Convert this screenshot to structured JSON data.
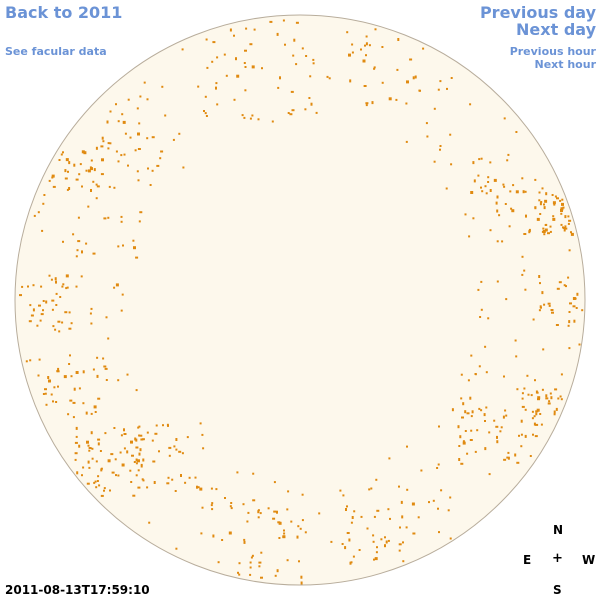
{
  "nav": {
    "back": "Back to 2011",
    "facular": "See facular data",
    "previous_day": "Previous day",
    "next_day": "Next day",
    "previous_hour": "Previous hour",
    "next_hour": "Next hour"
  },
  "timestamp": "2011-08-13T17:59:10",
  "compass": {
    "north": "N",
    "east": "E",
    "center": "+",
    "west": "W",
    "south": "S"
  },
  "colors": {
    "link": "#6b93d6",
    "disk_fill": "#fdf8ec",
    "disk_border": "#b8ad9c",
    "facula": "#e08a10"
  }
}
